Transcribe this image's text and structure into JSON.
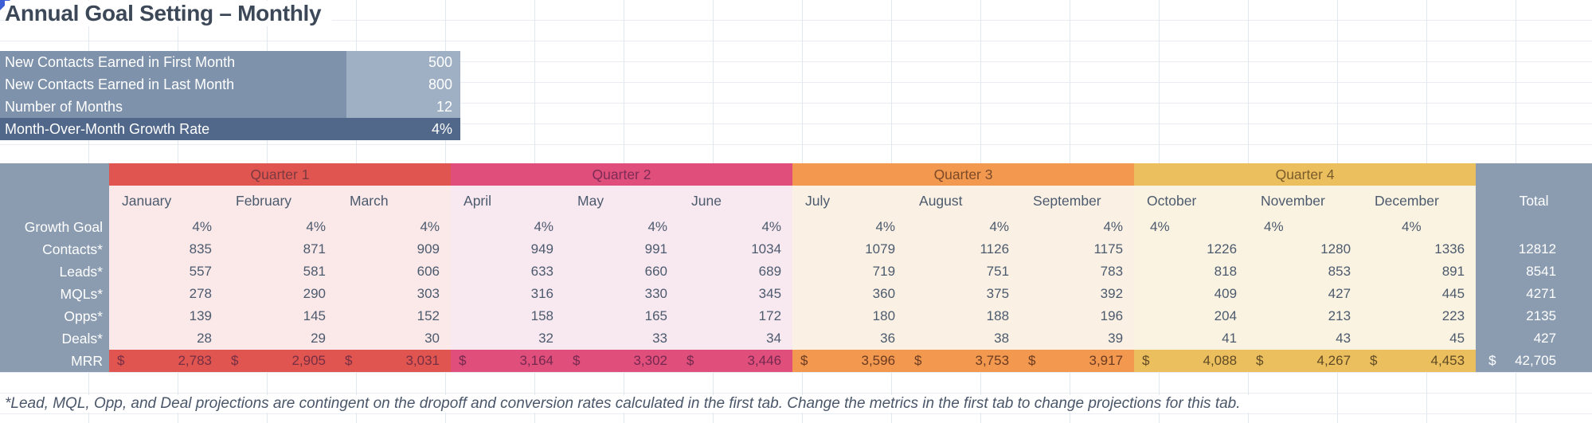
{
  "title": "Annual Goal Setting – Monthly",
  "settings": {
    "rows": [
      {
        "label": "New Contacts Earned in First Month",
        "value": "500",
        "dark": false
      },
      {
        "label": "New Contacts Earned in Last Month",
        "value": "800",
        "dark": false
      },
      {
        "label": "Number of Months",
        "value": "12",
        "dark": false
      },
      {
        "label": "Month-Over-Month Growth Rate",
        "value": "4%",
        "dark": true
      }
    ]
  },
  "colors": {
    "settings_label_bg": "#7e92ab",
    "settings_value_bg": "#9fb0c4",
    "settings_dark_bg": "#51688a",
    "label_column_bg": "#8b9cb1",
    "title_text": "#3c4858",
    "data_text": "#4c5a6e",
    "corner_marker": "#3d5ed4"
  },
  "table": {
    "quarters": [
      {
        "label": "Quarter 1",
        "color": "#e05550",
        "light": "#fae9e8",
        "text": "#7b3a40",
        "mrr_text": "#742f44"
      },
      {
        "label": "Quarter 2",
        "color": "#e04e7c",
        "light": "#f8e9f0",
        "text": "#7c2c55",
        "mrr_text": "#73294e"
      },
      {
        "label": "Quarter 3",
        "color": "#f2994f",
        "light": "#faf1e4",
        "text": "#7d4a28",
        "mrr_text": "#6b3a22"
      },
      {
        "label": "Quarter 4",
        "color": "#ecbf5e",
        "light": "#faf3e1",
        "text": "#7a5c2b",
        "mrr_text": "#5f4a26"
      }
    ],
    "months": [
      "January",
      "February",
      "March",
      "April",
      "May",
      "June",
      "July",
      "August",
      "September",
      "October",
      "November",
      "December"
    ],
    "total_label": "Total",
    "rows": [
      {
        "key": "growth-goal",
        "label": "Growth Goal",
        "values": [
          "4%",
          "4%",
          "4%",
          "4%",
          "4%",
          "4%",
          "4%",
          "4%",
          "4%",
          "4%",
          "4%",
          "4%"
        ],
        "total": ""
      },
      {
        "key": "contacts",
        "label": "Contacts*",
        "values": [
          "835",
          "871",
          "909",
          "949",
          "991",
          "1034",
          "1079",
          "1126",
          "1175",
          "1226",
          "1280",
          "1336"
        ],
        "total": "12812"
      },
      {
        "key": "leads",
        "label": "Leads*",
        "values": [
          "557",
          "581",
          "606",
          "633",
          "660",
          "689",
          "719",
          "751",
          "783",
          "818",
          "853",
          "891"
        ],
        "total": "8541"
      },
      {
        "key": "mqls",
        "label": "MQLs*",
        "values": [
          "278",
          "290",
          "303",
          "316",
          "330",
          "345",
          "360",
          "375",
          "392",
          "409",
          "427",
          "445"
        ],
        "total": "4271"
      },
      {
        "key": "opps",
        "label": "Opps*",
        "values": [
          "139",
          "145",
          "152",
          "158",
          "165",
          "172",
          "180",
          "188",
          "196",
          "204",
          "213",
          "223"
        ],
        "total": "2135"
      },
      {
        "key": "deals",
        "label": "Deals*",
        "values": [
          "28",
          "29",
          "30",
          "32",
          "33",
          "34",
          "36",
          "38",
          "39",
          "41",
          "43",
          "45"
        ],
        "total": "427"
      },
      {
        "key": "mrr",
        "label": "MRR",
        "currency": true,
        "currency_symbol": "$",
        "values": [
          "2,783",
          "2,905",
          "3,031",
          "3,164",
          "3,302",
          "3,446",
          "3,596",
          "3,753",
          "3,917",
          "4,088",
          "4,267",
          "4,453"
        ],
        "total": "42,705"
      }
    ]
  },
  "footnote": "*Lead, MQL, Opp, and Deal projections are contingent on the dropoff and conversion rates calculated in the first tab. Change the metrics in the first tab to change projections for this tab."
}
